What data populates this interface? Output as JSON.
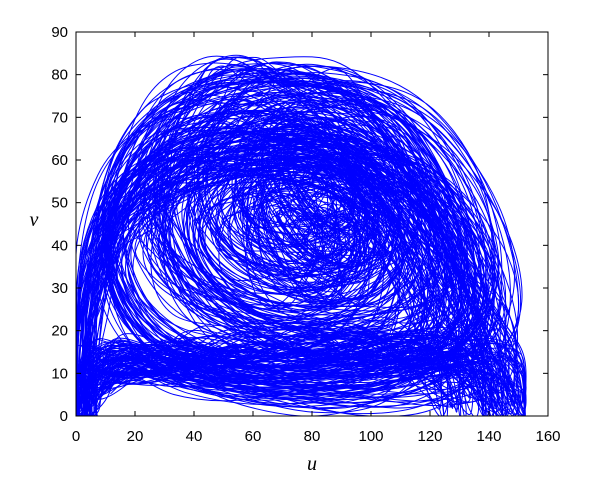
{
  "chart_data": {
    "type": "line",
    "title": "",
    "xlabel": "u",
    "ylabel": "v",
    "xlim": [
      0,
      160
    ],
    "ylim": [
      0,
      90
    ],
    "xticks": [
      0,
      20,
      40,
      60,
      80,
      100,
      120,
      140,
      160
    ],
    "yticks": [
      0,
      10,
      20,
      30,
      40,
      50,
      60,
      70,
      80,
      90
    ],
    "grid": false,
    "legend": "none",
    "series_color": "#0000ff",
    "series": [
      {
        "description_points": "approximate traced envelope of the chaotic phase trajectory",
        "x": [
          1,
          2,
          6,
          12,
          20,
          30,
          40,
          50,
          58,
          66,
          72,
          80,
          90,
          100,
          110,
          120,
          130,
          138,
          145,
          149,
          151,
          150,
          146,
          140,
          132,
          122,
          110,
          98,
          86,
          74,
          62,
          50,
          38,
          28,
          18,
          10,
          5,
          2,
          1
        ],
        "y": [
          0,
          20,
          38,
          52,
          62,
          70,
          75,
          79,
          82,
          82,
          81,
          80,
          77,
          72,
          65,
          56,
          44,
          32,
          20,
          10,
          1,
          4,
          10,
          14,
          16,
          17,
          18,
          18,
          17,
          17,
          17,
          17,
          16,
          15,
          14,
          13,
          11,
          8,
          0
        ]
      },
      {
        "description_points": "inner spiral loops around focus",
        "x": [
          86,
          92,
          96,
          95,
          90,
          84,
          78,
          74,
          72,
          74,
          80,
          88,
          96,
          102,
          104,
          100,
          92,
          82,
          72,
          64,
          60,
          62,
          70,
          82,
          96,
          108,
          114,
          112,
          104,
          90,
          76,
          62,
          50,
          44,
          46,
          56,
          70,
          88,
          106,
          120,
          128,
          126,
          116,
          100,
          82,
          62,
          44,
          32,
          28,
          34,
          48,
          68,
          92,
          114,
          132,
          140,
          136,
          122,
          100,
          74,
          50,
          30,
          18,
          14,
          20,
          36,
          60,
          90,
          118,
          138,
          146,
          140,
          120,
          92,
          62,
          36,
          16,
          6
        ],
        "y": [
          56,
          58,
          54,
          48,
          46,
          48,
          52,
          57,
          60,
          64,
          66,
          66,
          62,
          56,
          50,
          44,
          40,
          40,
          44,
          50,
          58,
          66,
          71,
          73,
          71,
          64,
          54,
          44,
          36,
          32,
          32,
          36,
          44,
          54,
          64,
          72,
          77,
          78,
          74,
          64,
          50,
          36,
          26,
          22,
          22,
          26,
          34,
          46,
          58,
          70,
          78,
          81,
          80,
          72,
          56,
          38,
          24,
          15,
          12,
          12,
          15,
          22,
          34,
          48,
          62,
          74,
          80,
          81,
          74,
          56,
          34,
          16,
          8,
          6,
          8,
          12,
          16,
          10
        ]
      }
    ]
  }
}
